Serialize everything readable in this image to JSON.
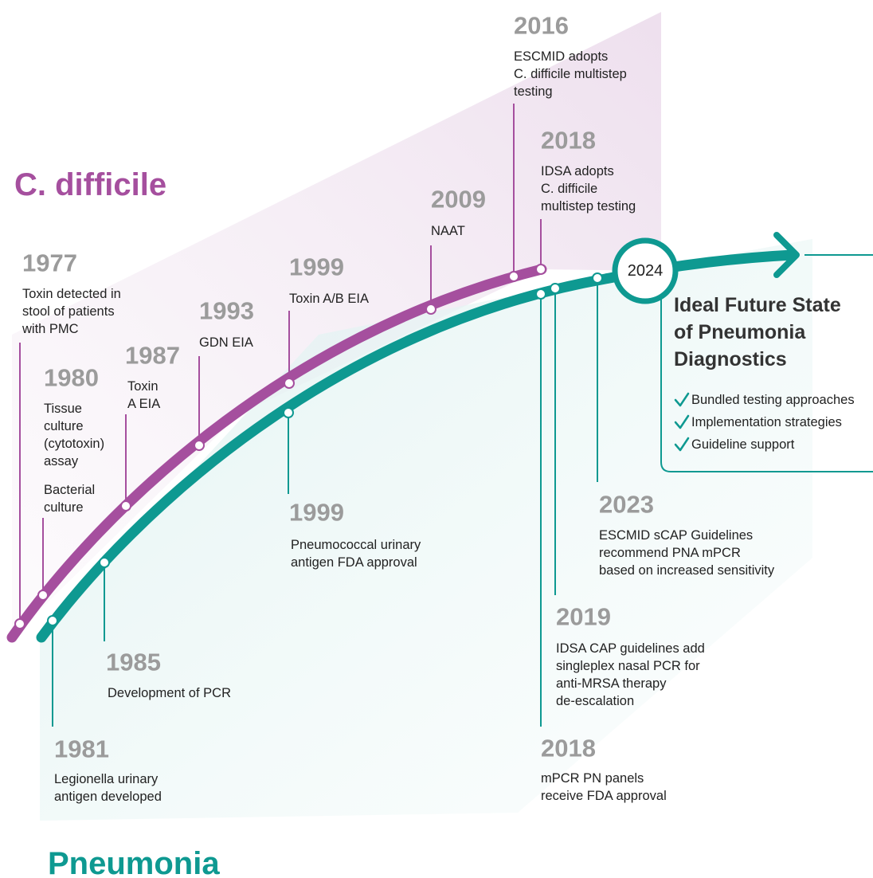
{
  "cdiff": {
    "title": "C. difficile",
    "events": [
      {
        "year": "1977",
        "notes": [
          [
            "Toxin detected in",
            "stool of patients",
            "with PMC"
          ]
        ]
      },
      {
        "year": "1980",
        "notes": [
          [
            "Tissue",
            "culture",
            "(cytotoxin)",
            "assay"
          ],
          [
            "Bacterial",
            "culture"
          ]
        ]
      },
      {
        "year": "1987",
        "notes": [
          [
            "Toxin",
            "A EIA"
          ]
        ]
      },
      {
        "year": "1993",
        "notes": [
          [
            "GDN EIA"
          ]
        ]
      },
      {
        "year": "1999",
        "notes": [
          [
            "Toxin A/B EIA"
          ]
        ]
      },
      {
        "year": "2009",
        "notes": [
          [
            "NAAT"
          ]
        ]
      },
      {
        "year": "2016",
        "notes": [
          [
            "ESCMID adopts",
            "C. difficile multistep",
            "testing"
          ]
        ]
      },
      {
        "year": "2018",
        "notes": [
          [
            "IDSA adopts",
            "C. difficile",
            "multistep testing"
          ]
        ]
      }
    ]
  },
  "pneumonia": {
    "title": "Pneumonia",
    "events": [
      {
        "year": "1981",
        "notes": [
          [
            "Legionella urinary",
            "antigen developed"
          ]
        ]
      },
      {
        "year": "1985",
        "notes": [
          [
            "Development of PCR"
          ]
        ]
      },
      {
        "year": "1999",
        "notes": [
          [
            "Pneumococcal urinary",
            "antigen FDA approval"
          ]
        ]
      },
      {
        "year": "2023",
        "notes": [
          [
            "ESCMID sCAP Guidelines",
            "recommend PNA mPCR",
            "based on increased sensitivity"
          ]
        ]
      },
      {
        "year": "2019",
        "notes": [
          [
            "IDSA CAP guidelines add",
            "singleplex nasal PCR for",
            "anti-MRSA therapy",
            "de-escalation"
          ]
        ]
      },
      {
        "year": "2018",
        "notes": [
          [
            "mPCR PN panels",
            "receive FDA approval"
          ]
        ]
      }
    ]
  },
  "future": {
    "year": "2024",
    "title_lines": [
      "Ideal Future State",
      "of Pneumonia",
      "Diagnostics"
    ],
    "items": [
      "Bundled testing approaches",
      "Implementation strategies",
      "Guideline support"
    ]
  }
}
